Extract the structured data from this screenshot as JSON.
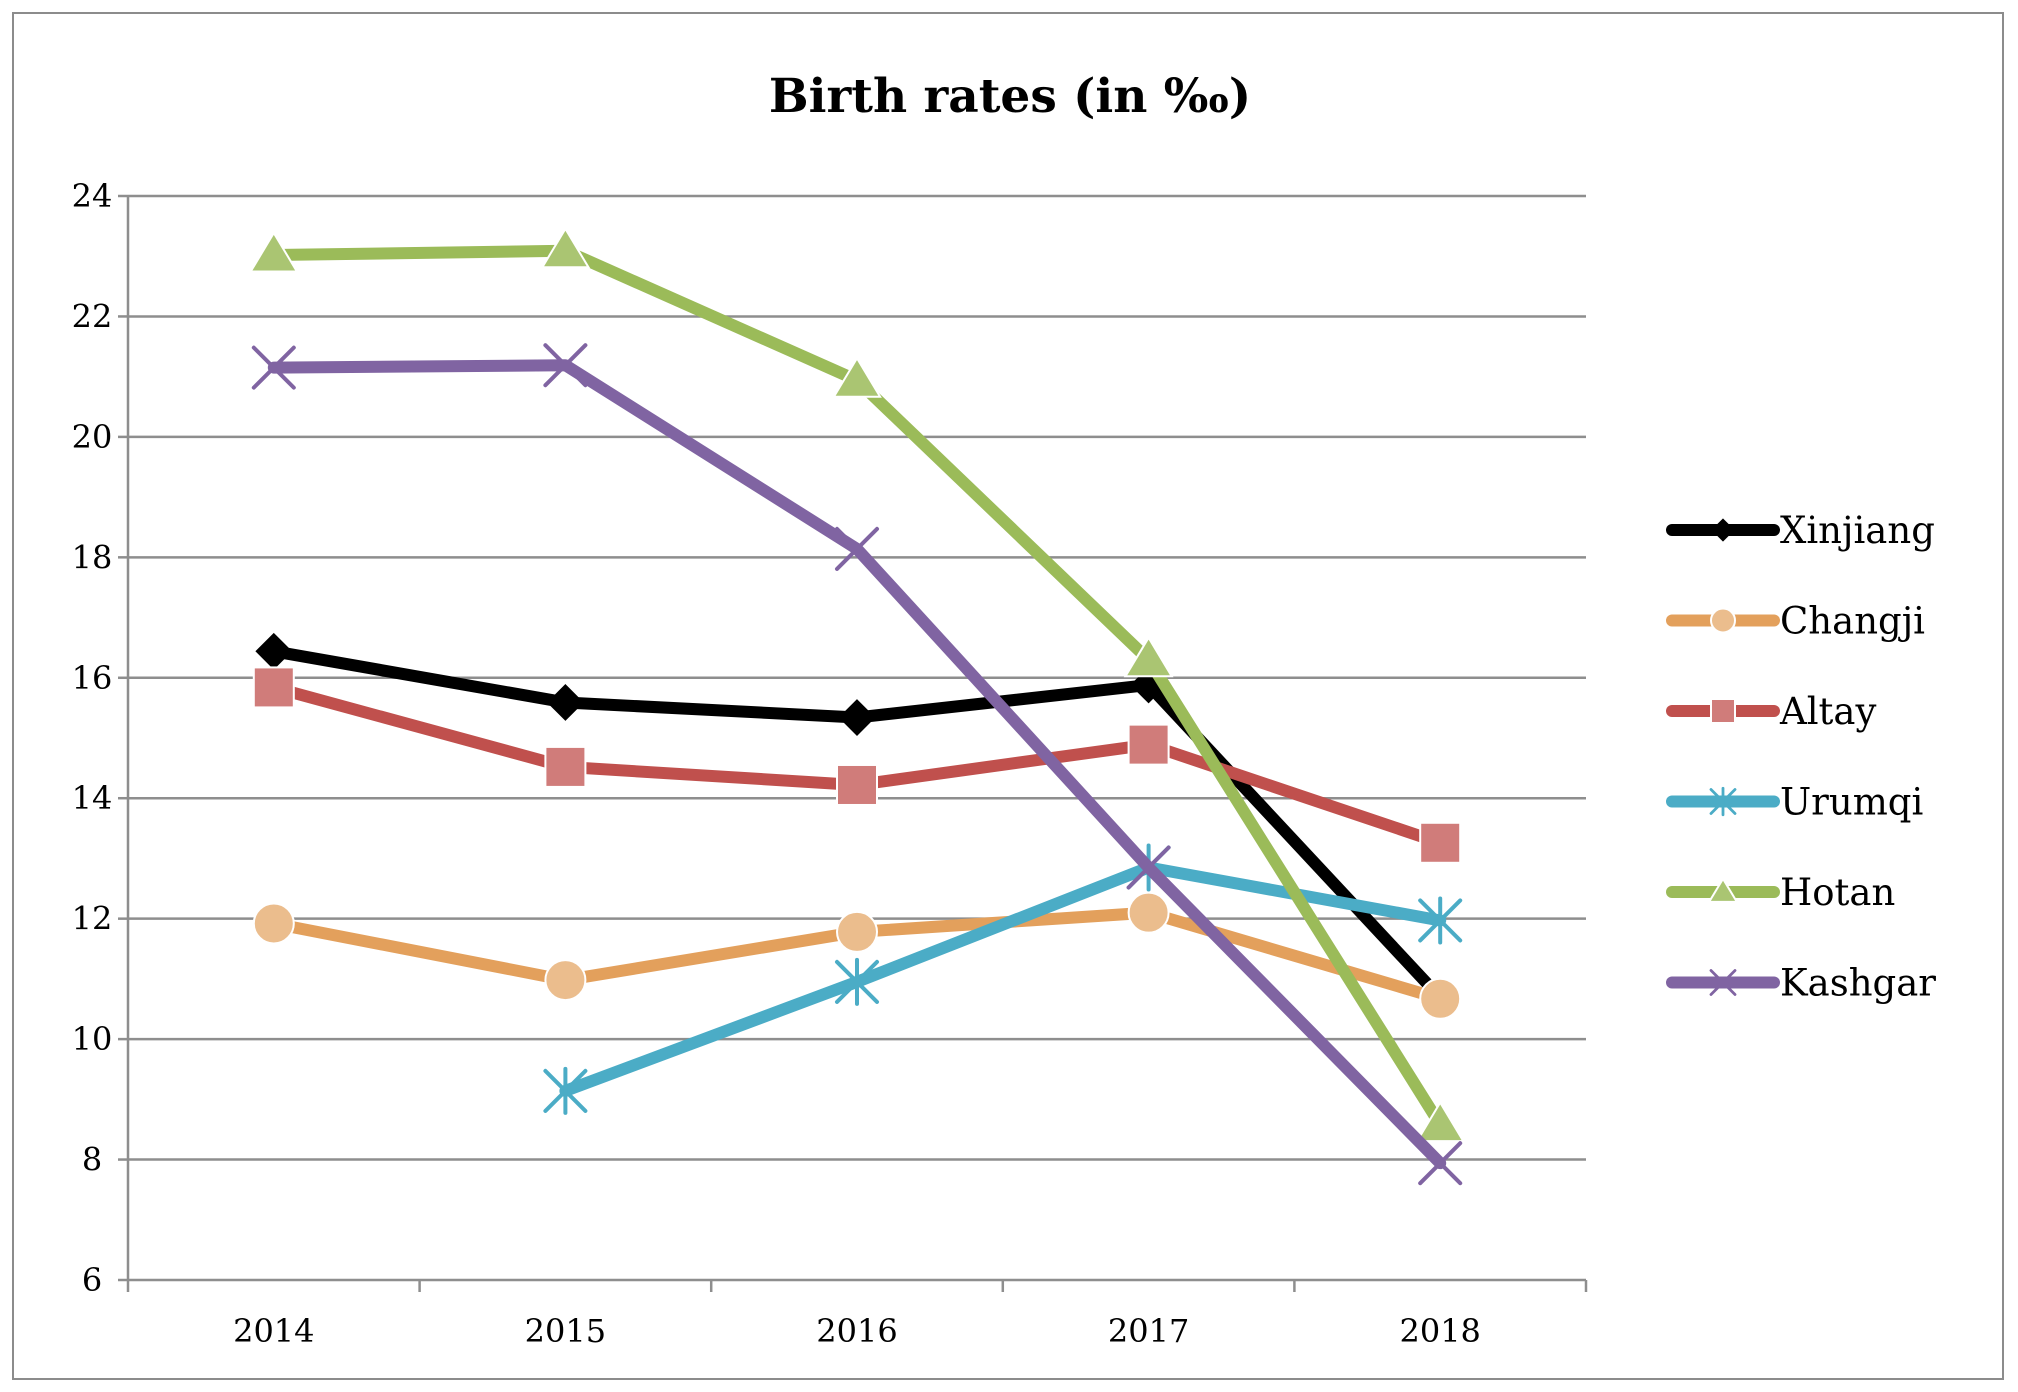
{
  "chart_data": {
    "type": "line",
    "title": "Birth rates (in ‰)",
    "xlabel": "",
    "ylabel": "",
    "categories": [
      "2014",
      "2015",
      "2016",
      "2017",
      "2018"
    ],
    "ylim": [
      6,
      24
    ],
    "yticks": [
      6,
      8,
      10,
      12,
      14,
      16,
      18,
      20,
      22,
      24
    ],
    "grid": true,
    "legend_position": "right",
    "series": [
      {
        "name": "Xinjiang",
        "values": [
          16.44,
          15.59,
          15.34,
          15.88,
          10.69
        ],
        "color": "#000000",
        "marker": "diamond"
      },
      {
        "name": "Changji",
        "values": [
          11.92,
          10.98,
          11.78,
          12.1,
          10.67
        ],
        "color": "#e3a05c",
        "marker": "circle"
      },
      {
        "name": "Altay",
        "values": [
          15.84,
          14.52,
          14.22,
          14.89,
          13.26
        ],
        "color": "#c0504d",
        "marker": "square"
      },
      {
        "name": "Urumqi",
        "values": [
          null,
          9.14,
          10.95,
          12.85,
          11.97
        ],
        "color": "#4bacc6",
        "marker": "asterisk"
      },
      {
        "name": "Hotan",
        "values": [
          23.02,
          23.09,
          20.94,
          16.3,
          8.58
        ],
        "color": "#9bbb59",
        "marker": "triangle"
      },
      {
        "name": "Kashgar",
        "values": [
          21.15,
          21.19,
          18.14,
          12.85,
          7.94
        ],
        "color": "#8064a2",
        "marker": "x"
      }
    ]
  }
}
